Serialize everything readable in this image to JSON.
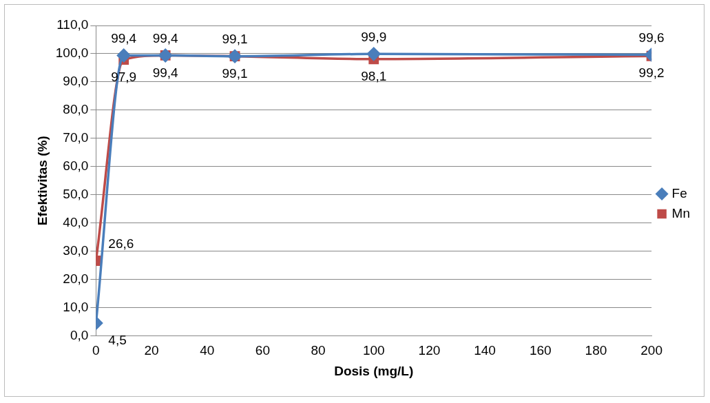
{
  "chart_data": {
    "type": "line",
    "xlabel": "Dosis (mg/L)",
    "ylabel": "Efektivitas (%)",
    "x": [
      0,
      10,
      25,
      50,
      100,
      200
    ],
    "series": [
      {
        "name": "Fe",
        "color": "#4a7ebb",
        "marker": "diamond",
        "values": [
          4.5,
          99.4,
          99.4,
          99.1,
          99.9,
          99.6
        ],
        "value_labels": [
          "4,5",
          "99,4",
          "99,4",
          "99,1",
          "99,9",
          "99,6"
        ]
      },
      {
        "name": "Mn",
        "color": "#be4b48",
        "marker": "square",
        "values": [
          26.6,
          97.9,
          99.4,
          99.1,
          98.1,
          99.2
        ],
        "value_labels": [
          "26,6",
          "97,9",
          "99,4",
          "99,1",
          "98,1",
          "99,2"
        ]
      }
    ],
    "xlim": [
      0,
      200
    ],
    "xticks": [
      0,
      20,
      40,
      60,
      80,
      100,
      120,
      140,
      160,
      180,
      200
    ],
    "ylim": [
      0,
      110
    ],
    "yticks": [
      {
        "value": 0,
        "label": "0,0"
      },
      {
        "value": 10,
        "label": "10,0"
      },
      {
        "value": 20,
        "label": "20,0"
      },
      {
        "value": 30,
        "label": "30,0"
      },
      {
        "value": 40,
        "label": "40,0"
      },
      {
        "value": 50,
        "label": "50,0"
      },
      {
        "value": 60,
        "label": "60,0"
      },
      {
        "value": 70,
        "label": "70,0"
      },
      {
        "value": 80,
        "label": "80,0"
      },
      {
        "value": 90,
        "label": "90,0"
      },
      {
        "value": 100,
        "label": "100,0"
      },
      {
        "value": 110,
        "label": "110,0"
      }
    ],
    "grid": "y",
    "legend": "right"
  }
}
